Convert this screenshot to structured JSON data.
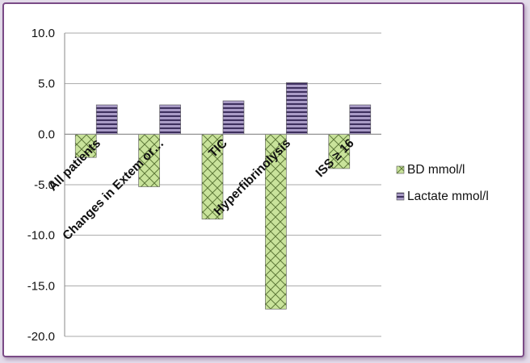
{
  "chart_data": {
    "type": "bar",
    "categories": [
      "All patients",
      "Changes in Extem or…",
      "TIC",
      "Hyperfibrinolysis",
      "ISS ≥ 16"
    ],
    "series": [
      {
        "name": "BD mmol/l",
        "values": [
          -2.3,
          -5.2,
          -8.4,
          -17.3,
          -3.4
        ],
        "color": "#c9e39b",
        "pattern": "crosshatch"
      },
      {
        "name": "Lactate mmol/l",
        "values": [
          2.9,
          2.9,
          3.3,
          5.1,
          2.9
        ],
        "color": "#a99bc6",
        "pattern": "horizontal-lines"
      }
    ],
    "yticks": [
      "10.0",
      "5.0",
      "0.0",
      "-5.0",
      "-10.0",
      "-15.0",
      "-20.0"
    ],
    "ylim": [
      -20,
      10
    ],
    "grid": true,
    "legend": "right"
  }
}
